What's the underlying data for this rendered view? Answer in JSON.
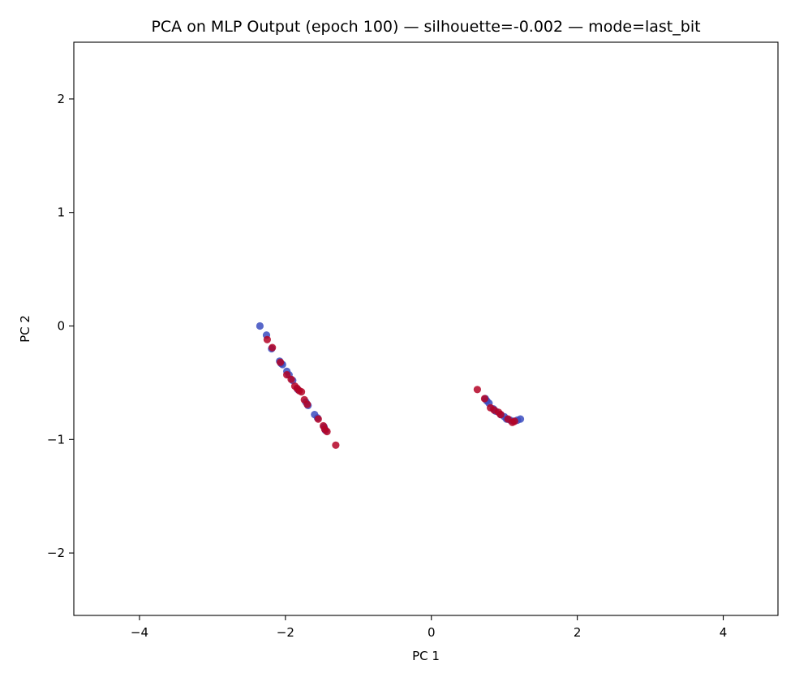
{
  "chart_data": {
    "type": "scatter",
    "title": "PCA on MLP Output (epoch 100) — silhouette=-0.002 — mode=last_bit",
    "xlabel": "PC 1",
    "ylabel": "PC 2",
    "xlim": [
      -4.9,
      4.75
    ],
    "ylim": [
      -2.55,
      2.5
    ],
    "xticks": [
      -4,
      -2,
      0,
      2,
      4
    ],
    "xtick_labels": [
      "−4",
      "−2",
      "0",
      "2",
      "4"
    ],
    "yticks": [
      -2,
      -1,
      0,
      1,
      2
    ],
    "ytick_labels": [
      "−2",
      "−1",
      "0",
      "1",
      "2"
    ],
    "grid": false,
    "series": [
      {
        "color": "#3b4cc0",
        "points": [
          [
            -2.35,
            0.0
          ],
          [
            -2.26,
            -0.08
          ],
          [
            -2.19,
            -0.2
          ],
          [
            -2.08,
            -0.31
          ],
          [
            -2.06,
            -0.33
          ],
          [
            -2.04,
            -0.34
          ],
          [
            -1.98,
            -0.4
          ],
          [
            -1.95,
            -0.43
          ],
          [
            -1.9,
            -0.48
          ],
          [
            -1.83,
            -0.56
          ],
          [
            -1.72,
            -0.67
          ],
          [
            -1.69,
            -0.7
          ],
          [
            -1.6,
            -0.78
          ],
          [
            -1.56,
            -0.81
          ],
          [
            -1.47,
            -0.89
          ],
          [
            -1.45,
            -0.92
          ],
          [
            0.74,
            -0.64
          ],
          [
            0.76,
            -0.66
          ],
          [
            0.79,
            -0.68
          ],
          [
            0.85,
            -0.73
          ],
          [
            0.88,
            -0.75
          ],
          [
            0.95,
            -0.78
          ],
          [
            1.0,
            -0.8
          ],
          [
            1.03,
            -0.82
          ],
          [
            1.08,
            -0.83
          ],
          [
            1.13,
            -0.84
          ],
          [
            1.18,
            -0.83
          ],
          [
            1.22,
            -0.82
          ]
        ]
      },
      {
        "color": "#b40426",
        "points": [
          [
            -2.25,
            -0.12
          ],
          [
            -2.18,
            -0.19
          ],
          [
            -2.07,
            -0.32
          ],
          [
            -1.98,
            -0.43
          ],
          [
            -1.92,
            -0.47
          ],
          [
            -1.87,
            -0.53
          ],
          [
            -1.84,
            -0.55
          ],
          [
            -1.81,
            -0.57
          ],
          [
            -1.78,
            -0.58
          ],
          [
            -1.74,
            -0.65
          ],
          [
            -1.7,
            -0.69
          ],
          [
            -1.55,
            -0.82
          ],
          [
            -1.48,
            -0.88
          ],
          [
            -1.46,
            -0.91
          ],
          [
            -1.43,
            -0.93
          ],
          [
            -1.31,
            -1.05
          ],
          [
            0.63,
            -0.56
          ],
          [
            0.73,
            -0.64
          ],
          [
            0.81,
            -0.72
          ],
          [
            0.86,
            -0.74
          ],
          [
            0.92,
            -0.76
          ],
          [
            0.95,
            -0.78
          ],
          [
            1.05,
            -0.82
          ],
          [
            1.11,
            -0.85
          ],
          [
            1.14,
            -0.84
          ]
        ]
      }
    ]
  }
}
